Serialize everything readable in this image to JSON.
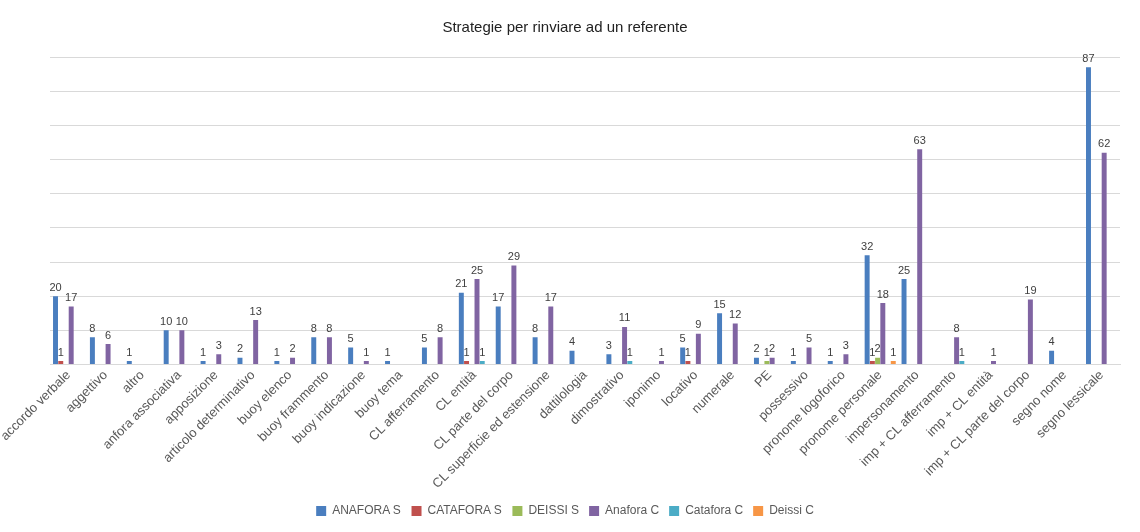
{
  "chart_data": {
    "type": "bar",
    "title": "Strategie per rinviare ad un referente",
    "categories": [
      "accordo verbale",
      "aggettivo",
      "altro",
      "anfora associativa",
      "apposizione",
      "articolo determinativo",
      "buoy elenco",
      "buoy frammento",
      "buoy indicazione",
      "buoy tema",
      "CL afferramento",
      "CL entità",
      "CL parte del corpo",
      "CL superficie ed estensione",
      "dattilologia",
      "dimostrativo",
      "iponimo",
      "locativo",
      "numerale",
      "PE",
      "possessivo",
      "pronome logoforico",
      "pronome personale",
      "impersonamento",
      "imp + CL afferramento",
      "imp + CL entità",
      "imp + CL parte del corpo",
      "segno nome",
      "segno lessicale"
    ],
    "series": [
      {
        "name": "ANAFORA S",
        "color": "#4a7ebf",
        "values": [
          20,
          8,
          1,
          10,
          1,
          2,
          1,
          8,
          5,
          1,
          5,
          21,
          17,
          8,
          4,
          3,
          null,
          5,
          15,
          2,
          1,
          1,
          32,
          25,
          null,
          null,
          null,
          4,
          87
        ]
      },
      {
        "name": "CATAFORA S",
        "color": "#c0504d",
        "values": [
          1,
          null,
          null,
          null,
          null,
          null,
          null,
          null,
          null,
          null,
          null,
          1,
          null,
          null,
          null,
          null,
          null,
          1,
          null,
          null,
          null,
          null,
          1,
          null,
          null,
          null,
          null,
          null,
          null
        ]
      },
      {
        "name": "DEISSI S",
        "color": "#9bbb59",
        "values": [
          null,
          null,
          null,
          null,
          null,
          null,
          null,
          null,
          null,
          null,
          null,
          null,
          null,
          null,
          null,
          null,
          null,
          null,
          null,
          1,
          null,
          null,
          2,
          null,
          null,
          null,
          null,
          null,
          null
        ]
      },
      {
        "name": "Anafora C",
        "color": "#8064a2",
        "values": [
          17,
          6,
          null,
          10,
          3,
          13,
          2,
          8,
          1,
          null,
          8,
          25,
          29,
          17,
          null,
          11,
          1,
          9,
          12,
          2,
          5,
          3,
          18,
          63,
          8,
          1,
          19,
          null,
          62
        ]
      },
      {
        "name": "Catafora C",
        "color": "#4bacc6",
        "values": [
          null,
          null,
          null,
          null,
          null,
          null,
          null,
          null,
          null,
          null,
          null,
          1,
          null,
          null,
          null,
          1,
          null,
          null,
          null,
          null,
          null,
          null,
          null,
          null,
          1,
          null,
          null,
          null,
          null
        ]
      },
      {
        "name": "Deissi C",
        "color": "#f79646",
        "values": [
          null,
          null,
          null,
          null,
          null,
          null,
          null,
          null,
          null,
          null,
          null,
          null,
          null,
          null,
          null,
          null,
          null,
          null,
          null,
          null,
          null,
          null,
          1,
          null,
          null,
          null,
          null,
          null,
          null
        ]
      }
    ],
    "ylim": [
      0,
      90
    ],
    "yticks": [
      {
        "value": 0,
        "label": null
      },
      {
        "value": 10,
        "label": null
      },
      {
        "value": 20,
        "label": null
      },
      {
        "value": 30,
        "label": null
      },
      {
        "value": 40,
        "label": null
      },
      {
        "value": 50,
        "label": null
      },
      {
        "value": 60,
        "label": null
      },
      {
        "value": 70,
        "label": null
      },
      {
        "value": 80,
        "label": null
      },
      {
        "value": 90,
        "label": null
      }
    ],
    "grid": "y",
    "tick_labels": "x",
    "legend": "bottom",
    "data_labels": true
  }
}
